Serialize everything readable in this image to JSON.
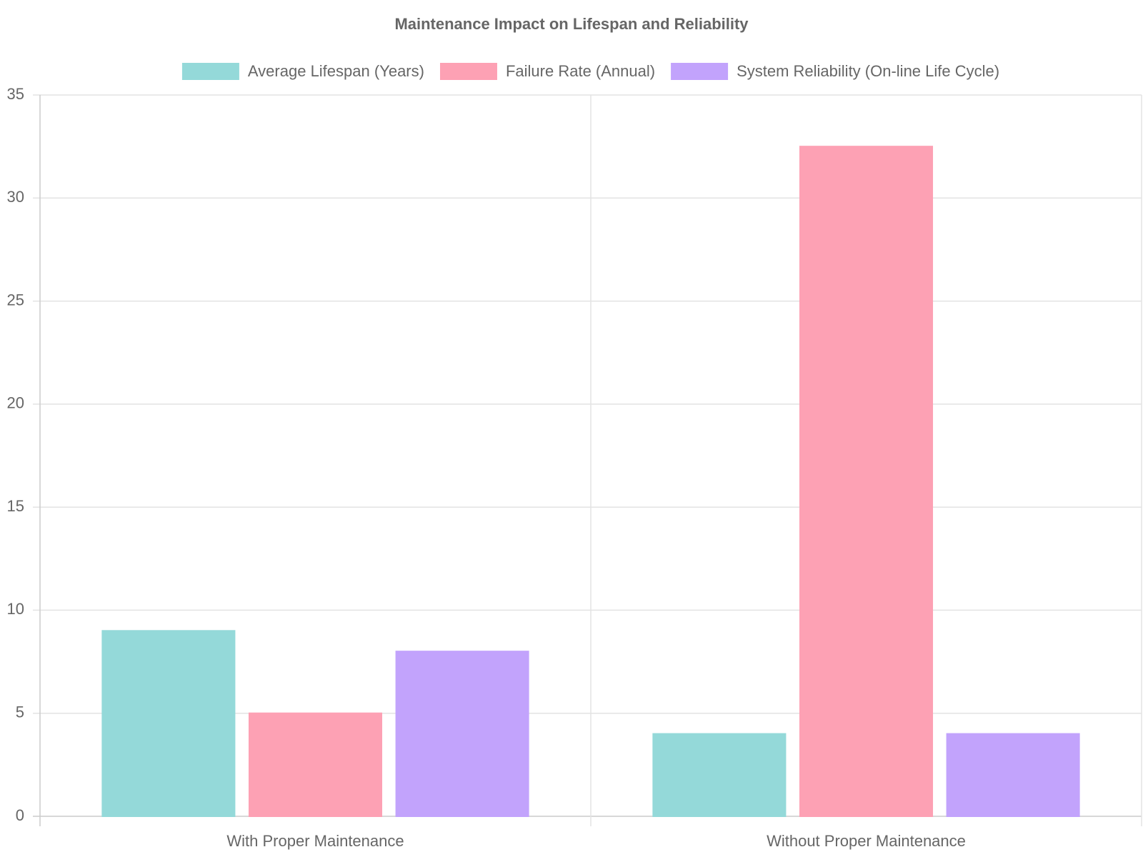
{
  "chart_data": {
    "type": "bar",
    "title": "Maintenance Impact on Lifespan and Reliability",
    "categories": [
      "With Proper Maintenance",
      "Without Proper Maintenance"
    ],
    "series": [
      {
        "name": "Average Lifespan (Years)",
        "color": "#94d9d9",
        "values": [
          9,
          4
        ]
      },
      {
        "name": "Failure Rate (Annual)",
        "color": "#fda1b4",
        "values": [
          5,
          32.5
        ]
      },
      {
        "name": "System Reliability (On-line Life Cycle)",
        "color": "#c2a3fc",
        "values": [
          8,
          4
        ]
      }
    ],
    "ylim": [
      0,
      35
    ],
    "yticks": [
      0,
      5,
      10,
      15,
      20,
      25,
      30,
      35
    ],
    "grid": true,
    "legend": "top"
  }
}
